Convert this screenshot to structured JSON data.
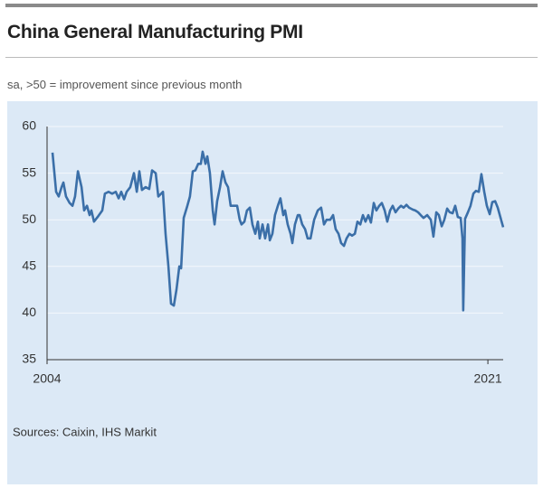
{
  "chart_data": {
    "type": "line",
    "title": "China General Manufacturing PMI",
    "subtitle": "sa, >50 = improvement since previous month",
    "source": "Sources: Caixin, IHS Markit",
    "ylim": [
      35,
      60
    ],
    "yticks": [
      35,
      40,
      45,
      50,
      55,
      60
    ],
    "xlim": [
      2004,
      2021.59
    ],
    "xticks": [
      2004,
      2021
    ],
    "grid": true,
    "x": [
      2004.21,
      2004.35,
      2004.45,
      2004.56,
      2004.63,
      2004.73,
      2004.87,
      2004.98,
      2005.08,
      2005.19,
      2005.33,
      2005.43,
      2005.54,
      2005.64,
      2005.71,
      2005.81,
      2005.95,
      2006.13,
      2006.23,
      2006.37,
      2006.51,
      2006.65,
      2006.76,
      2006.86,
      2006.97,
      2007.07,
      2007.21,
      2007.35,
      2007.46,
      2007.56,
      2007.66,
      2007.8,
      2007.94,
      2008.05,
      2008.19,
      2008.29,
      2008.47,
      2008.57,
      2008.68,
      2008.78,
      2008.89,
      2008.99,
      2009.1,
      2009.17,
      2009.27,
      2009.41,
      2009.51,
      2009.62,
      2009.72,
      2009.83,
      2009.93,
      2010.0,
      2010.11,
      2010.18,
      2010.28,
      2010.39,
      2010.46,
      2010.56,
      2010.67,
      2010.77,
      2010.88,
      2010.98,
      2011.08,
      2011.22,
      2011.33,
      2011.43,
      2011.5,
      2011.61,
      2011.71,
      2011.82,
      2011.92,
      2012.03,
      2012.13,
      2012.2,
      2012.31,
      2012.41,
      2012.52,
      2012.59,
      2012.69,
      2012.79,
      2012.9,
      2013.0,
      2013.11,
      2013.18,
      2013.28,
      2013.39,
      2013.46,
      2013.56,
      2013.67,
      2013.74,
      2013.84,
      2013.95,
      2014.05,
      2014.16,
      2014.3,
      2014.44,
      2014.57,
      2014.68,
      2014.78,
      2014.92,
      2015.03,
      2015.13,
      2015.24,
      2015.34,
      2015.45,
      2015.55,
      2015.66,
      2015.76,
      2015.87,
      2015.97,
      2016.08,
      2016.18,
      2016.28,
      2016.39,
      2016.49,
      2016.6,
      2016.7,
      2016.81,
      2016.91,
      2017.02,
      2017.12,
      2017.23,
      2017.33,
      2017.44,
      2017.54,
      2017.65,
      2017.75,
      2017.86,
      2017.96,
      2018.1,
      2018.2,
      2018.31,
      2018.41,
      2018.52,
      2018.66,
      2018.8,
      2018.9,
      2019.01,
      2019.11,
      2019.22,
      2019.32,
      2019.43,
      2019.53,
      2019.64,
      2019.74,
      2019.84,
      2019.95,
      2020.02,
      2020.05,
      2020.12,
      2020.23,
      2020.33,
      2020.44,
      2020.54,
      2020.65,
      2020.75,
      2020.86,
      2020.96,
      2021.07,
      2021.17,
      2021.28,
      2021.38,
      2021.48,
      2021.59
    ],
    "series": [
      {
        "name": "China General Manufacturing PMI",
        "color": "#3b6fa8",
        "values": [
          57.2,
          53,
          52.5,
          53.5,
          54,
          52.5,
          51.8,
          51.5,
          52.5,
          55.2,
          53.5,
          51,
          51.5,
          50.5,
          51,
          49.8,
          50.3,
          51,
          52.8,
          53,
          52.8,
          53,
          52.3,
          53,
          52.2,
          53,
          53.5,
          55,
          53,
          55.2,
          53.2,
          53.5,
          53.3,
          55.3,
          55,
          52.5,
          53,
          48.5,
          45,
          41,
          40.8,
          42.5,
          45,
          44.8,
          50.2,
          51.5,
          52.5,
          55.2,
          55.3,
          56,
          56,
          57.3,
          56,
          56.8,
          55,
          51,
          49.5,
          52,
          53.5,
          55.2,
          54,
          53.5,
          51.5,
          51.5,
          51.5,
          50,
          49.5,
          49.8,
          51,
          51.3,
          49.5,
          48.5,
          49.8,
          48,
          49.5,
          48,
          49.5,
          47.8,
          48.5,
          50.5,
          51.5,
          52.3,
          50.5,
          51,
          49.5,
          48.5,
          47.5,
          49.5,
          50.5,
          50.5,
          49.5,
          49,
          48,
          48,
          50,
          51,
          51.3,
          49.5,
          50,
          50,
          50.5,
          49,
          48.5,
          47.5,
          47.2,
          48,
          48.5,
          48.3,
          48.5,
          49.8,
          49.5,
          50.5,
          49.8,
          50.5,
          49.7,
          51.8,
          51,
          51.5,
          51.8,
          51,
          49.8,
          51,
          51.5,
          50.8,
          51.2,
          51.5,
          51.3,
          51.6,
          51.3,
          51.1,
          51,
          50.8,
          50.5,
          50.2,
          50.5,
          50,
          48.2,
          50.8,
          50.5,
          49.3,
          50,
          51.2,
          50.8,
          50.7,
          51.5,
          50.3,
          50.2,
          48,
          40.3,
          50.1,
          50.8,
          51.5,
          52.8,
          53.1,
          53,
          54.9,
          53,
          51.5,
          50.6,
          51.9,
          52,
          51.3,
          50.3,
          49.2
        ]
      }
    ]
  }
}
